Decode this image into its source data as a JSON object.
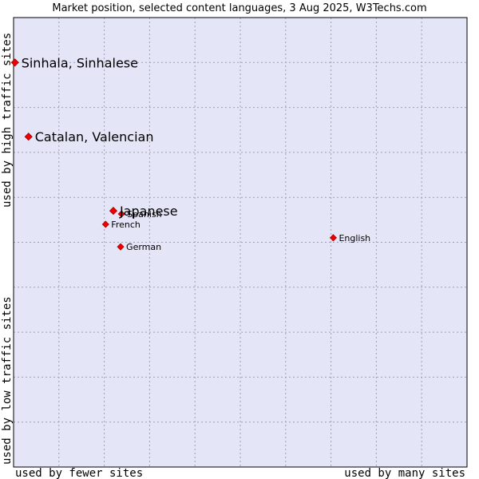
{
  "chart_data": {
    "type": "scatter",
    "title": "Market position, selected content languages, 3 Aug 2025, W3Techs.com",
    "xlabel_low": "used by fewer sites",
    "xlabel_high": "used by many sites",
    "ylabel_low": "used by low traffic sites",
    "ylabel_high": "used by high traffic sites",
    "xlim": [
      0,
      100
    ],
    "ylim": [
      0,
      100
    ],
    "grid": true,
    "colors": {
      "plot_bg": "#e5e5f8",
      "marker": "#ee0000",
      "marker_stroke": "#aa0000",
      "axis": "#000000"
    },
    "points": [
      {
        "name": "Sinhala, Sinhalese",
        "x": 0.3,
        "y": 90.0,
        "size": "large"
      },
      {
        "name": "Catalan, Valencian",
        "x": 3.3,
        "y": 73.5,
        "size": "large"
      },
      {
        "name": "Japanese",
        "x": 22.0,
        "y": 57.0,
        "size": "large"
      },
      {
        "name": "Spanish",
        "x": 23.8,
        "y": 56.3,
        "size": "small"
      },
      {
        "name": "French",
        "x": 20.3,
        "y": 54.0,
        "size": "small"
      },
      {
        "name": "German",
        "x": 23.6,
        "y": 49.0,
        "size": "small"
      },
      {
        "name": "English",
        "x": 70.5,
        "y": 51.0,
        "size": "small"
      }
    ]
  }
}
